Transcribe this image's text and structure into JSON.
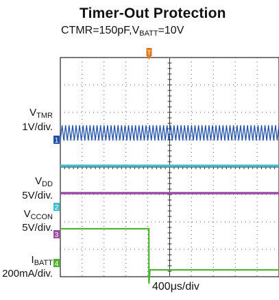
{
  "chart_data": {
    "type": "line",
    "title": "Timer-Out Protection",
    "subtitle": {
      "prefix": "CTMR=150pF,V",
      "sub": "BATT",
      "suffix": "=10V"
    },
    "xlabel": "400μs/div",
    "divisions": {
      "x": 10,
      "y": 8
    },
    "trigger_marker": "T",
    "channels": [
      {
        "id": "1",
        "name_main": "V",
        "name_sub": "TMR",
        "scale": "1V/div.",
        "color": "#1f4fa8"
      },
      {
        "id": "2",
        "name_main": "V",
        "name_sub": "DD",
        "scale": "5V/div.",
        "color": "#3ec1cf"
      },
      {
        "id": "3",
        "name_main": "V",
        "name_sub": "CCON",
        "scale": "5V/div.",
        "color": "#9b4aa6"
      },
      {
        "id": "4",
        "name_main": "I",
        "name_sub": "BATT",
        "scale": "200mA/div.",
        "color": "#4fb52f"
      }
    ],
    "series": [
      {
        "channel": "1",
        "waveform": "triangle",
        "level_div": 5.25,
        "amplitude_div": 0.28,
        "period_div": 0.16
      },
      {
        "channel": "2",
        "waveform": "dc",
        "level_div": 4.05
      },
      {
        "channel": "3",
        "waveform": "dc",
        "level_div": 3.05
      },
      {
        "channel": "4",
        "waveform": "step",
        "high_div": 1.75,
        "low_div": 0.25,
        "step_at_div": 4.05
      }
    ]
  }
}
